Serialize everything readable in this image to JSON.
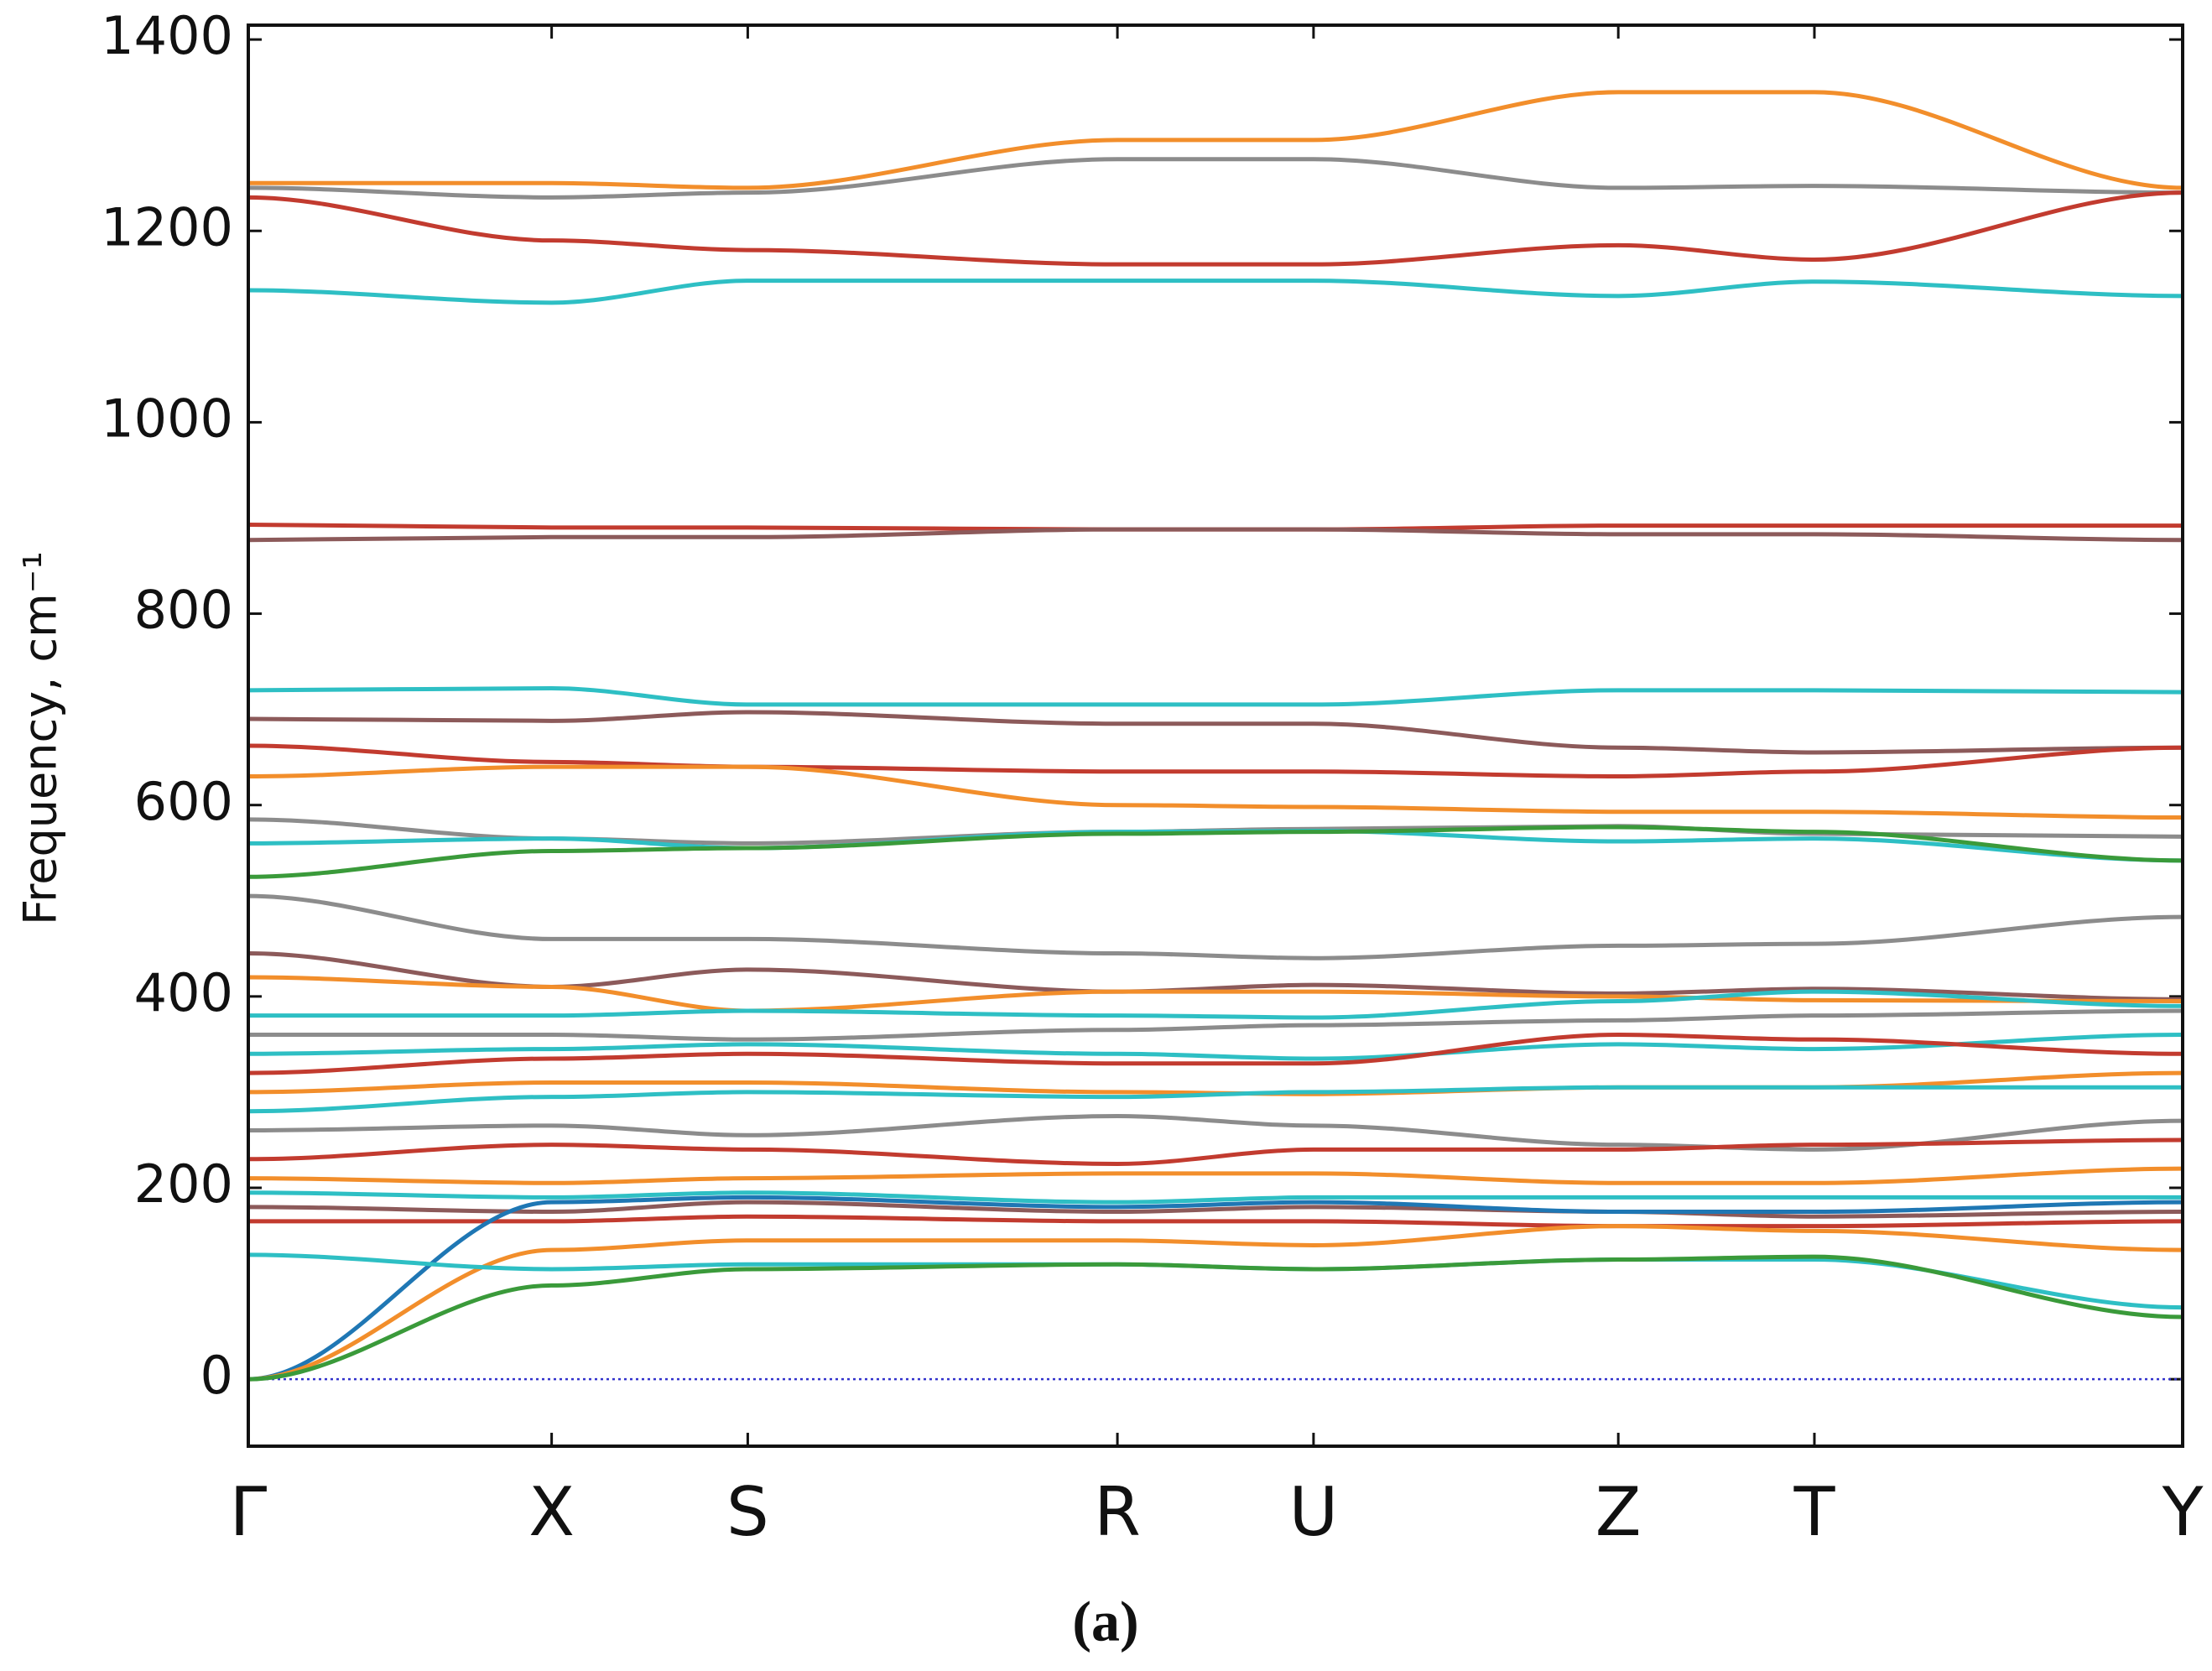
{
  "chart_data": {
    "type": "line",
    "y_label": "Frequency, cm⁻¹",
    "caption": "(a)",
    "x": [
      0,
      215,
      354,
      616,
      755,
      971,
      1110,
      1371
    ],
    "xlim": [
      0,
      1371
    ],
    "xticks": [
      {
        "value": 0,
        "label": "Γ"
      },
      {
        "value": 215,
        "label": "X"
      },
      {
        "value": 354,
        "label": "S"
      },
      {
        "value": 616,
        "label": "R"
      },
      {
        "value": 755,
        "label": "U"
      },
      {
        "value": 971,
        "label": "Z"
      },
      {
        "value": 1110,
        "label": "T"
      },
      {
        "value": 1371,
        "label": "Y"
      }
    ],
    "ylim": [
      -70,
      1415
    ],
    "yticks": [
      0,
      200,
      400,
      600,
      800,
      1000,
      1200,
      1400
    ],
    "zero_line_color": "#3333cc",
    "series": [
      {
        "color": "#f28e2b",
        "values": [
          1250,
          1250,
          1245,
          1295,
          1295,
          1345,
          1345,
          1245
        ]
      },
      {
        "color": "#8c8c8c",
        "values": [
          1245,
          1235,
          1240,
          1275,
          1275,
          1245,
          1247,
          1240
        ]
      },
      {
        "color": "#c23b2f",
        "values": [
          1235,
          1190,
          1180,
          1165,
          1165,
          1185,
          1170,
          1240
        ]
      },
      {
        "color": "#2ebfc4",
        "values": [
          1138,
          1125,
          1148,
          1148,
          1148,
          1132,
          1147,
          1132
        ]
      },
      {
        "color": "#c23b2f",
        "values": [
          893,
          890,
          890,
          888,
          888,
          892,
          892,
          892
        ]
      },
      {
        "color": "#8c5a5a",
        "values": [
          877,
          880,
          880,
          888,
          888,
          883,
          883,
          877
        ]
      },
      {
        "color": "#2ebfc4",
        "values": [
          720,
          722,
          705,
          705,
          705,
          720,
          720,
          718
        ]
      },
      {
        "color": "#8c5a5a",
        "values": [
          690,
          688,
          697,
          685,
          685,
          660,
          655,
          660
        ]
      },
      {
        "color": "#c23b2f",
        "values": [
          662,
          645,
          640,
          635,
          635,
          630,
          635,
          660
        ]
      },
      {
        "color": "#f28e2b",
        "values": [
          630,
          640,
          640,
          600,
          598,
          593,
          593,
          587
        ]
      },
      {
        "color": "#8c8c8c",
        "values": [
          585,
          565,
          560,
          572,
          575,
          578,
          570,
          567
        ]
      },
      {
        "color": "#2ebfc4",
        "values": [
          560,
          565,
          555,
          572,
          573,
          562,
          565,
          542
        ]
      },
      {
        "color": "#3a9a3a",
        "values": [
          525,
          552,
          555,
          570,
          572,
          577,
          572,
          542
        ]
      },
      {
        "color": "#8c8c8c",
        "values": [
          505,
          460,
          460,
          445,
          440,
          453,
          455,
          483
        ]
      },
      {
        "color": "#8c5a5a",
        "values": [
          445,
          410,
          428,
          405,
          412,
          403,
          408,
          397
        ]
      },
      {
        "color": "#f28e2b",
        "values": [
          420,
          410,
          385,
          405,
          405,
          400,
          396,
          395
        ]
      },
      {
        "color": "#2ebfc4",
        "values": [
          380,
          380,
          385,
          380,
          378,
          395,
          405,
          390
        ]
      },
      {
        "color": "#8c8c8c",
        "values": [
          360,
          360,
          355,
          365,
          370,
          375,
          380,
          385
        ]
      },
      {
        "color": "#2ebfc4",
        "values": [
          340,
          345,
          350,
          340,
          335,
          350,
          345,
          360
        ]
      },
      {
        "color": "#c23b2f",
        "values": [
          320,
          335,
          340,
          330,
          330,
          360,
          355,
          340
        ]
      },
      {
        "color": "#f28e2b",
        "values": [
          300,
          310,
          310,
          300,
          298,
          305,
          305,
          320
        ]
      },
      {
        "color": "#2ebfc4",
        "values": [
          280,
          295,
          300,
          295,
          300,
          305,
          305,
          305
        ]
      },
      {
        "color": "#8c8c8c",
        "values": [
          260,
          265,
          255,
          275,
          265,
          245,
          240,
          270
        ]
      },
      {
        "color": "#c23b2f",
        "values": [
          230,
          245,
          240,
          225,
          240,
          240,
          245,
          250
        ]
      },
      {
        "color": "#f28e2b",
        "values": [
          210,
          205,
          210,
          215,
          215,
          205,
          205,
          220
        ]
      },
      {
        "color": "#2ebfc4",
        "values": [
          195,
          190,
          195,
          185,
          190,
          190,
          190,
          190
        ]
      },
      {
        "color": "#8c5a5a",
        "values": [
          180,
          175,
          185,
          175,
          180,
          175,
          170,
          175
        ]
      },
      {
        "color": "#c23b2f",
        "values": [
          165,
          165,
          170,
          165,
          165,
          160,
          160,
          165
        ]
      },
      {
        "color": "#1f77b4",
        "values": [
          0,
          185,
          190,
          180,
          185,
          175,
          175,
          185
        ]
      },
      {
        "color": "#f28e2b",
        "values": [
          0,
          135,
          145,
          145,
          140,
          160,
          155,
          135
        ]
      },
      {
        "color": "#2ebfc4",
        "values": [
          130,
          115,
          120,
          120,
          115,
          125,
          125,
          75
        ]
      },
      {
        "color": "#3a9a3a",
        "values": [
          0,
          98,
          115,
          120,
          115,
          125,
          128,
          65
        ]
      }
    ]
  }
}
